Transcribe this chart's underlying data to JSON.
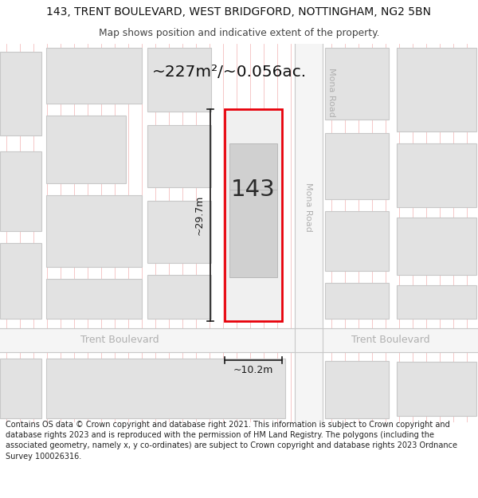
{
  "title_line1": "143, TRENT BOULEVARD, WEST BRIDGFORD, NOTTINGHAM, NG2 5BN",
  "title_line2": "Map shows position and indicative extent of the property.",
  "footer_lines": [
    "Contains OS data © Crown copyright and database right 2021. This information is subject to Crown copyright and database rights 2023 and is reproduced with the permission of",
    "HM Land Registry. The polygons (including the associated geometry, namely x, y co-ordinates) are subject to Crown copyright and database rights 2023 Ordnance Survey",
    "100026316."
  ],
  "area_label": "~227m²/~0.056ac.",
  "dim_height_label": "~29.7m",
  "dim_width_label": "~10.2m",
  "property_label": "143",
  "road_mona": "Mona Road",
  "road_trent_left": "Trent Boulevard",
  "road_trent_right": "Trent Boulevard",
  "bg_color": "#ffffff",
  "map_bg": "#ffffff",
  "building_fill": "#e2e2e2",
  "building_edge": "#c8c8c8",
  "road_fill": "#f5f5f5",
  "property_fill": "#f0f0f0",
  "property_edge": "#e8000a",
  "dim_color": "#1a1a1a",
  "grid_color": "#f2b8b8",
  "road_edge_color": "#c8c8c8",
  "street_label_color": "#b0b0b0",
  "area_text_color": "#111111",
  "title_color": "#111111",
  "subtitle_color": "#444444",
  "footer_color": "#222222",
  "inner_building_fill": "#d0d0d0",
  "inner_building_edge": "#b8b8b8"
}
